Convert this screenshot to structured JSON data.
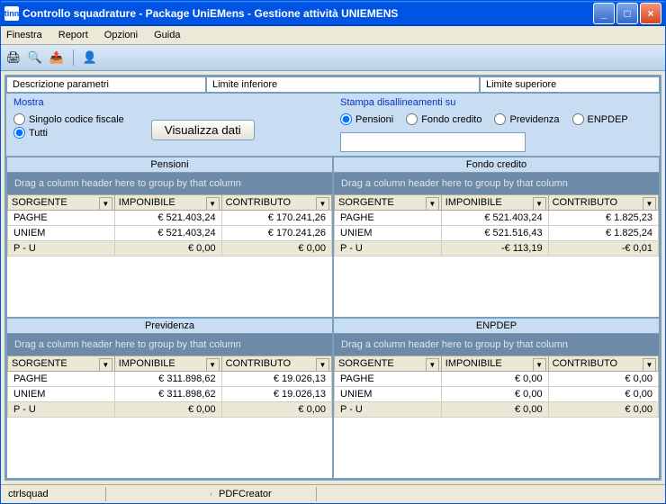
{
  "window": {
    "title": "Controllo squadrature - Package UniEMens - Gestione attività UNIEMENS",
    "icon_text": "tinn"
  },
  "menu": {
    "finestra": "Finestra",
    "report": "Report",
    "opzioni": "Opzioni",
    "guida": "Guida"
  },
  "headers": {
    "descrizione": "Descrizione parametri",
    "lim_inf": "Limite inferiore",
    "lim_sup": "Limite superiore"
  },
  "mostra": {
    "label": "Mostra",
    "singolo": "Singolo codice fiscale",
    "tutti": "Tutti",
    "selected": "tutti",
    "btn": "Visualizza dati"
  },
  "stampa": {
    "label": "Stampa disallineamenti su",
    "pensioni": "Pensioni",
    "fondo": "Fondo credito",
    "previdenza": "Previdenza",
    "enpdep": "ENPDEP",
    "selected": "pensioni"
  },
  "grid_common": {
    "group_hint": "Drag a column header here to group by that column",
    "col_src": "SORGENTE",
    "col_imp": "IMPONIBILE",
    "col_con": "CONTRIBUTO"
  },
  "grids": {
    "pensioni": {
      "title": "Pensioni",
      "rows": [
        {
          "src": "PAGHE",
          "imp": "€ 521.403,24",
          "con": "€ 170.241,26"
        },
        {
          "src": "UNIEM",
          "imp": "€ 521.403,24",
          "con": "€ 170.241,26"
        },
        {
          "src": "P - U",
          "imp": "€ 0,00",
          "con": "€ 0,00"
        }
      ]
    },
    "fondo": {
      "title": "Fondo credito",
      "rows": [
        {
          "src": "PAGHE",
          "imp": "€ 521.403,24",
          "con": "€ 1.825,23"
        },
        {
          "src": "UNIEM",
          "imp": "€ 521.516,43",
          "con": "€ 1.825,24"
        },
        {
          "src": "P - U",
          "imp": "-€ 113,19",
          "con": "-€ 0,01"
        }
      ]
    },
    "previdenza": {
      "title": "Previdenza",
      "rows": [
        {
          "src": "PAGHE",
          "imp": "€ 311.898,62",
          "con": "€ 19.026,13"
        },
        {
          "src": "UNIEM",
          "imp": "€ 311.898,62",
          "con": "€ 19.026,13"
        },
        {
          "src": "P - U",
          "imp": "€ 0,00",
          "con": "€ 0,00"
        }
      ]
    },
    "enpdep": {
      "title": "ENPDEP",
      "rows": [
        {
          "src": "PAGHE",
          "imp": "€ 0,00",
          "con": "€ 0,00"
        },
        {
          "src": "UNIEM",
          "imp": "€ 0,00",
          "con": "€ 0,00"
        },
        {
          "src": "P - U",
          "imp": "€ 0,00",
          "con": "€ 0,00"
        }
      ]
    }
  },
  "status": {
    "left": "ctrlsquad",
    "printer": "PDFCreator"
  },
  "colors": {
    "titlebar_grad_top": "#3a95ff",
    "titlebar_grad_mid": "#0054e3",
    "panel_bg": "#c8ddf2",
    "border": "#7b9ebd",
    "header_bg": "#ebe8d7",
    "group_bg": "#6d8aa8"
  }
}
